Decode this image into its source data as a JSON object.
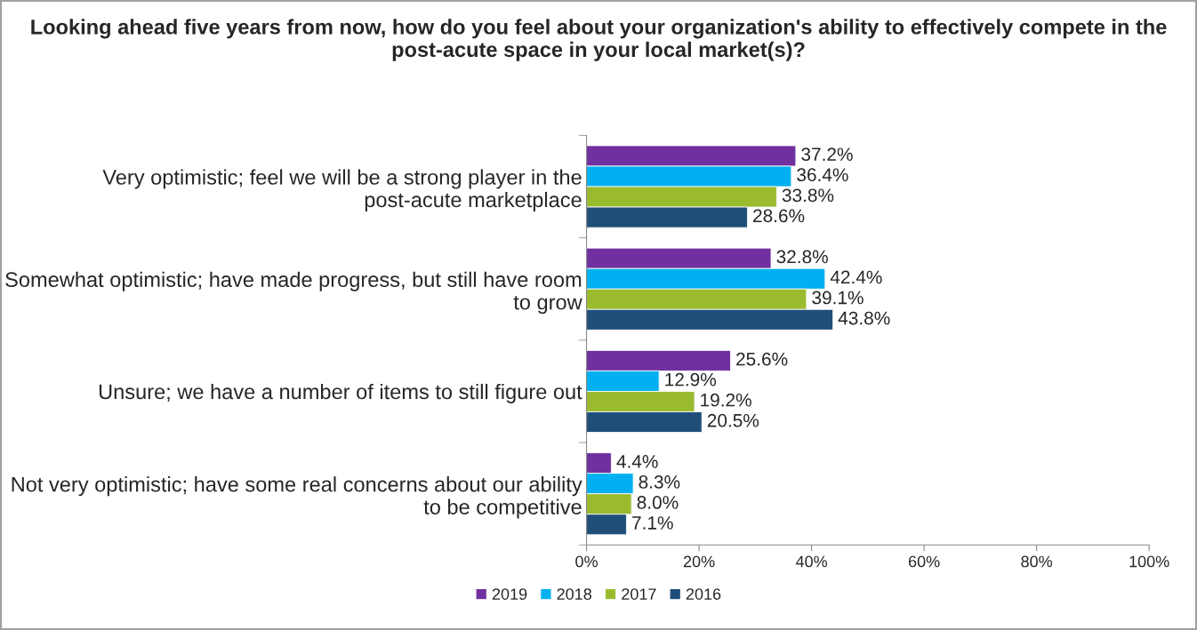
{
  "chart_data": {
    "type": "bar",
    "orientation": "horizontal",
    "title": "Looking ahead five years from now, how do you feel about your organization's ability to effectively compete in the post-acute space in your local market(s)?",
    "categories": [
      "Very optimistic; feel we will be a strong player in the post-acute marketplace",
      "Somewhat optimistic; have made progress, but still have room to grow",
      "Unsure; we have a number of items to still figure out",
      "Not very optimistic; have some real concerns about our ability to be competitive"
    ],
    "series": [
      {
        "name": "2019",
        "color": "#7030a0",
        "values": [
          37.2,
          32.8,
          25.6,
          4.4
        ],
        "value_labels": [
          "37.2%",
          "32.8%",
          "25.6%",
          "4.4%"
        ]
      },
      {
        "name": "2018",
        "color": "#00b0f0",
        "values": [
          36.4,
          42.4,
          12.9,
          8.3
        ],
        "value_labels": [
          "36.4%",
          "42.4%",
          "12.9%",
          "8.3%"
        ]
      },
      {
        "name": "2017",
        "color": "#9bbb2f",
        "values": [
          33.8,
          39.1,
          19.2,
          8.0
        ],
        "value_labels": [
          "33.8%",
          "39.1%",
          "19.2%",
          "8.0%"
        ]
      },
      {
        "name": "2016",
        "color": "#1f4e79",
        "values": [
          28.6,
          43.8,
          20.5,
          7.1
        ],
        "value_labels": [
          "28.6%",
          "43.8%",
          "20.5%",
          "7.1%"
        ]
      }
    ],
    "xlim": [
      0,
      100
    ],
    "xticks": [
      {
        "value": 0,
        "label": "0%"
      },
      {
        "value": 20,
        "label": "20%"
      },
      {
        "value": 40,
        "label": "40%"
      },
      {
        "value": 60,
        "label": "60%"
      },
      {
        "value": 80,
        "label": "80%"
      },
      {
        "value": 100,
        "label": "100%"
      }
    ],
    "grid": false,
    "legend": "bottom"
  }
}
